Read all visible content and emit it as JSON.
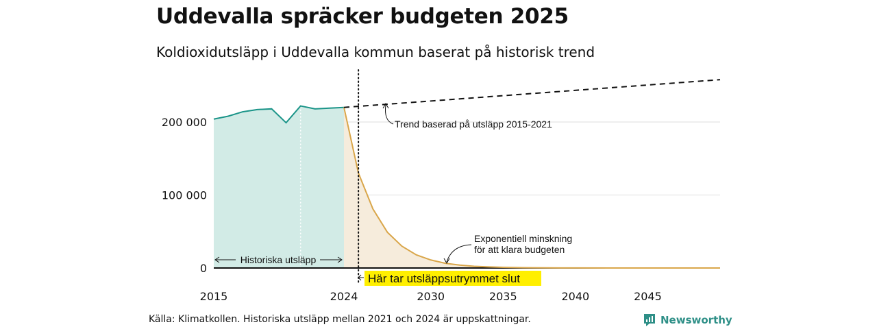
{
  "header": {
    "title": "Uddevalla spräcker budgeten 2025",
    "subtitle": "Koldioxidutsläpp i Uddevalla kommun baserat på historisk trend"
  },
  "footer": {
    "source": "Källa: Klimatkollen. Historiska utsläpp mellan 2021 och 2024 är uppskattningar.",
    "brand": "Newsworthy",
    "brand_icon": "newsworthy-logo-icon"
  },
  "colors": {
    "historical_line": "#1a9488",
    "historical_fill": "#d2ebe6",
    "budget_line": "#d9a64a",
    "budget_fill": "#f6ecdc",
    "trend_line": "#111111",
    "highlight": "#ffef00",
    "grid": "#dddddd"
  },
  "chart_data": {
    "type": "area",
    "xlim": [
      2015,
      2050
    ],
    "ylim": [
      0,
      260000
    ],
    "x_ticks": [
      2015,
      2024,
      2030,
      2035,
      2040,
      2045
    ],
    "y_ticks": [
      0,
      100000,
      200000
    ],
    "x_tick_labels": [
      "2015",
      "2024",
      "2030",
      "2035",
      "2040",
      "2045"
    ],
    "y_tick_labels": [
      "0",
      "100 000",
      "200 000"
    ],
    "grid": "horizontal",
    "series": [
      {
        "style": "solid-area",
        "x": [
          2015,
          2016,
          2017,
          2018,
          2019,
          2020,
          2021,
          2022,
          2023,
          2024
        ],
        "values": [
          204000,
          208000,
          214000,
          217000,
          218000,
          199000,
          222000,
          218000,
          219000,
          220000
        ]
      },
      {
        "style": "trend-dashed",
        "x": [
          2024,
          2050
        ],
        "values": [
          220000,
          258000
        ]
      },
      {
        "style": "exponential-area",
        "x": [
          2024,
          2025,
          2026,
          2027,
          2028,
          2029,
          2030,
          2031,
          2032,
          2033,
          2034,
          2035,
          2036,
          2037,
          2038,
          2039,
          2040,
          2045,
          2050
        ],
        "values": [
          220000,
          130000,
          81000,
          49000,
          30000,
          18000,
          11000,
          6500,
          4000,
          2400,
          1500,
          900,
          550,
          330,
          200,
          120,
          70,
          0,
          0
        ]
      }
    ],
    "markers": {
      "dotted_vertical_x": 2021,
      "dotted_vertical_x2": 2025
    },
    "annotations": {
      "trend": "Trend baserad på utsläpp 2015-2021",
      "historical": "Historiska utsläpp",
      "exp_line1": "Exponentiell minskning",
      "exp_line2": "för att klara budgeten",
      "budget_end": "Här tar utsläppsutrymmet slut"
    }
  }
}
